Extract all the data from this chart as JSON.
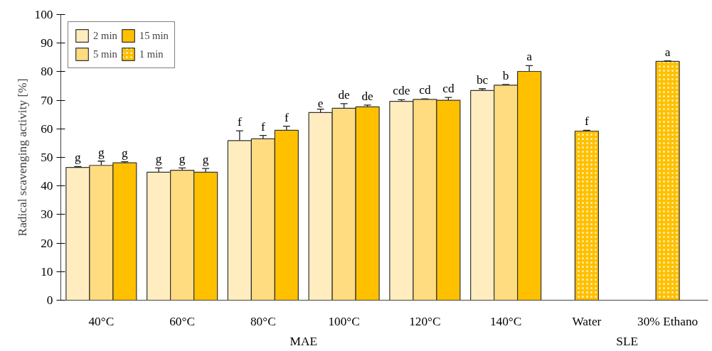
{
  "chart_data": {
    "type": "bar",
    "ylabel": "Radical scavenging activity [%]",
    "categories": [
      "40°C",
      "60°C",
      "80°C",
      "100°C",
      "120°C",
      "140°C",
      "Water",
      "30% Ethano"
    ],
    "series": [
      {
        "name": "2 min",
        "color": "#ffedc0",
        "values": [
          46.5,
          44.8,
          55.9,
          65.7,
          69.6,
          73.4,
          null,
          null
        ],
        "errors": [
          0.3,
          1.5,
          3.4,
          1.2,
          0.6,
          0.6,
          null,
          null
        ],
        "value_labels": [
          "g",
          "g",
          "f",
          "e",
          "cde",
          "bc",
          null,
          null
        ]
      },
      {
        "name": "5 min",
        "color": "#ffdc80",
        "values": [
          47.2,
          45.5,
          56.5,
          67.2,
          70.3,
          75.3,
          null,
          null
        ],
        "errors": [
          1.5,
          0.8,
          1.2,
          1.6,
          0.2,
          0.2,
          null,
          null
        ],
        "value_labels": [
          "g",
          "g",
          "f",
          "de",
          "cd",
          "b",
          null,
          null
        ]
      },
      {
        "name": "15 min",
        "color": "#ffc000",
        "values": [
          48.1,
          44.8,
          59.5,
          67.7,
          70.0,
          80.1,
          null,
          null
        ],
        "errors": [
          0.4,
          1.3,
          1.4,
          0.6,
          1.0,
          2.0,
          null,
          null
        ],
        "value_labels": [
          "g",
          "g",
          "f",
          "de",
          "cd",
          "a",
          null,
          null
        ]
      },
      {
        "name": "1 min",
        "color": "#ffc000",
        "values": [
          null,
          null,
          null,
          null,
          null,
          null,
          59.2,
          83.6
        ],
        "errors": [
          null,
          null,
          null,
          null,
          null,
          null,
          0.3,
          0.2
        ],
        "value_labels": [
          null,
          null,
          null,
          null,
          null,
          null,
          "f",
          "a"
        ]
      }
    ],
    "annotations": [
      "MAE",
      "SLE"
    ],
    "ylim": [
      0,
      100
    ],
    "yticks": [
      0,
      10,
      20,
      30,
      40,
      50,
      60,
      70,
      80,
      90,
      100
    ],
    "grid": false,
    "legend": "top left"
  }
}
